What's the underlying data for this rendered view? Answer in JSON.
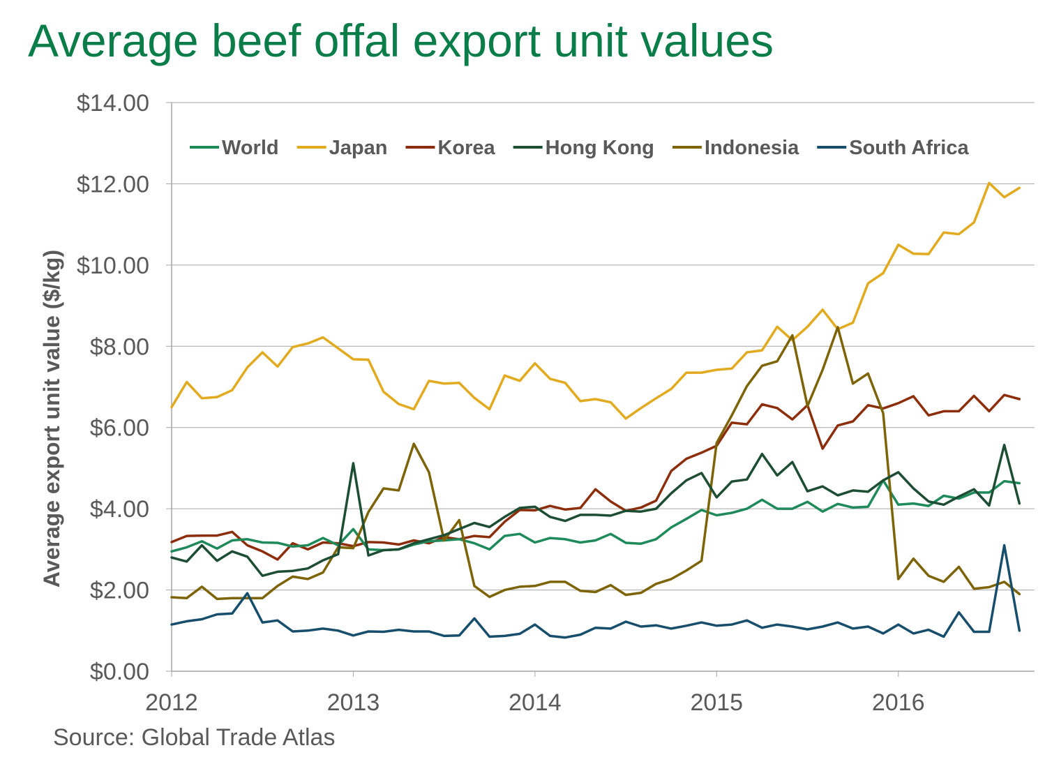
{
  "page": {
    "title": "Average beef offal export unit values",
    "source": "Source: Global Trade Atlas"
  },
  "chart_data": {
    "type": "line",
    "title": "Average beef offal export unit values",
    "xlabel": "",
    "ylabel": "Average export unit value ($/kg)",
    "xlim": [
      2012,
      2016.75
    ],
    "ylim": [
      0,
      14
    ],
    "x_ticks": [
      "2012",
      "2013",
      "2014",
      "2015",
      "2016"
    ],
    "y_ticks": [
      "$0.00",
      "$2.00",
      "$4.00",
      "$6.00",
      "$8.00",
      "$10.00",
      "$12.00",
      "$14.00"
    ],
    "grid": "horizontal",
    "legend_position": "top",
    "x_start": "2012-01",
    "x_frequency": "monthly",
    "series": [
      {
        "name": "World",
        "color": "#1e8a5a",
        "values": [
          2.95,
          3.05,
          3.2,
          3.02,
          3.22,
          3.25,
          3.17,
          3.16,
          3.07,
          3.1,
          3.28,
          3.1,
          3.5,
          3.0,
          2.98,
          3.0,
          3.12,
          3.2,
          3.22,
          3.25,
          3.15,
          3.0,
          3.33,
          3.38,
          3.17,
          3.28,
          3.25,
          3.17,
          3.22,
          3.38,
          3.16,
          3.14,
          3.25,
          3.54,
          3.75,
          3.97,
          3.84,
          3.9,
          4.0,
          4.22,
          4.0,
          4.0,
          4.17,
          3.93,
          4.12,
          4.03,
          4.05,
          4.7,
          4.1,
          4.13,
          4.07,
          4.32,
          4.25,
          4.4,
          4.4,
          4.68,
          4.63
        ]
      },
      {
        "name": "Japan",
        "color": "#e2aa1e",
        "values": [
          6.5,
          7.12,
          6.72,
          6.75,
          6.92,
          7.48,
          7.85,
          7.5,
          7.98,
          8.07,
          8.22,
          7.95,
          7.68,
          7.67,
          6.88,
          6.58,
          6.45,
          7.15,
          7.08,
          7.1,
          6.73,
          6.45,
          7.28,
          7.15,
          7.58,
          7.2,
          7.1,
          6.65,
          6.7,
          6.62,
          6.22,
          6.48,
          6.72,
          6.95,
          7.35,
          7.35,
          7.42,
          7.45,
          7.85,
          7.9,
          8.48,
          8.15,
          8.48,
          8.9,
          8.42,
          8.58,
          9.55,
          9.8,
          10.5,
          10.28,
          10.27,
          10.8,
          10.76,
          11.05,
          12.02,
          11.67,
          11.9
        ]
      },
      {
        "name": "Korea",
        "color": "#8c2e0b",
        "values": [
          3.18,
          3.33,
          3.34,
          3.34,
          3.43,
          3.1,
          2.95,
          2.75,
          3.15,
          3.0,
          3.17,
          3.15,
          3.08,
          3.18,
          3.17,
          3.12,
          3.22,
          3.15,
          3.3,
          3.25,
          3.33,
          3.3,
          3.68,
          3.97,
          3.96,
          4.07,
          3.98,
          4.02,
          4.48,
          4.18,
          3.95,
          4.03,
          4.2,
          4.93,
          5.23,
          5.38,
          5.55,
          6.12,
          6.08,
          6.57,
          6.48,
          6.2,
          6.55,
          5.48,
          6.05,
          6.15,
          6.55,
          6.47,
          6.6,
          6.77,
          6.3,
          6.4,
          6.4,
          6.78,
          6.4,
          6.8,
          6.7
        ]
      },
      {
        "name": "Hong Kong",
        "color": "#1d4e34",
        "values": [
          2.8,
          2.7,
          3.1,
          2.72,
          2.95,
          2.82,
          2.35,
          2.45,
          2.47,
          2.53,
          2.73,
          2.88,
          5.12,
          2.85,
          2.98,
          3.0,
          3.15,
          3.25,
          3.35,
          3.5,
          3.65,
          3.55,
          3.8,
          4.02,
          4.05,
          3.8,
          3.7,
          3.85,
          3.85,
          3.83,
          3.95,
          3.93,
          4.0,
          4.38,
          4.7,
          4.88,
          4.28,
          4.67,
          4.72,
          5.35,
          4.82,
          5.15,
          4.43,
          4.55,
          4.33,
          4.45,
          4.42,
          4.7,
          4.9,
          4.5,
          4.18,
          4.1,
          4.3,
          4.48,
          4.08,
          5.57,
          4.13
        ]
      },
      {
        "name": "Indonesia",
        "color": "#7d6408",
        "values": [
          1.82,
          1.8,
          2.08,
          1.78,
          1.8,
          1.8,
          1.8,
          2.1,
          2.33,
          2.27,
          2.43,
          3.05,
          3.03,
          3.92,
          4.5,
          4.45,
          5.6,
          4.9,
          3.22,
          3.72,
          2.1,
          1.83,
          2.0,
          2.08,
          2.1,
          2.2,
          2.2,
          1.98,
          1.95,
          2.12,
          1.88,
          1.93,
          2.15,
          2.27,
          2.48,
          2.72,
          5.62,
          6.3,
          7.02,
          7.52,
          7.63,
          8.27,
          6.53,
          7.42,
          8.47,
          7.08,
          7.33,
          6.35,
          2.27,
          2.77,
          2.35,
          2.2,
          2.57,
          2.03,
          2.07,
          2.2,
          1.9
        ]
      },
      {
        "name": "South Africa",
        "color": "#174e6c",
        "values": [
          1.15,
          1.23,
          1.28,
          1.4,
          1.42,
          1.92,
          1.2,
          1.25,
          0.98,
          1.0,
          1.05,
          1.0,
          0.88,
          0.98,
          0.97,
          1.02,
          0.98,
          0.98,
          0.87,
          0.88,
          1.3,
          0.85,
          0.87,
          0.92,
          1.15,
          0.87,
          0.83,
          0.9,
          1.07,
          1.05,
          1.22,
          1.1,
          1.13,
          1.05,
          1.12,
          1.2,
          1.12,
          1.15,
          1.25,
          1.07,
          1.15,
          1.1,
          1.03,
          1.1,
          1.2,
          1.05,
          1.1,
          0.93,
          1.15,
          0.93,
          1.02,
          0.85,
          1.45,
          0.97,
          0.97,
          3.1,
          1.0
        ]
      }
    ]
  }
}
